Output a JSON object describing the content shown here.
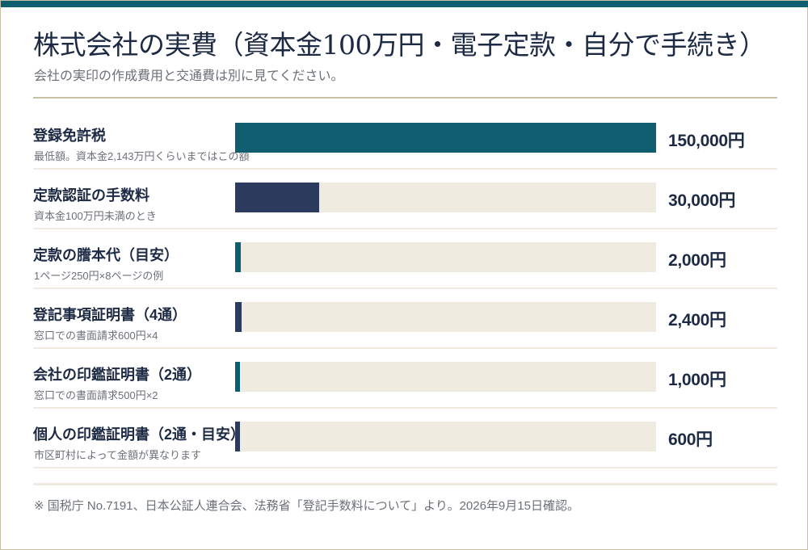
{
  "colors": {
    "accent_teal": "#0f5e6f",
    "accent_navy": "#2c3a5e",
    "track": "#f0ebe0",
    "text_dark": "#1d2a44",
    "text_muted": "#6b7078",
    "rule": "#c9c1a5"
  },
  "header": {
    "title": "株式会社の実費（資本金100万円・電子定款・自分で手続き）",
    "subtitle": "会社の実印の作成費用と交通費は別に見てください。"
  },
  "chart_data": {
    "type": "bar",
    "orientation": "horizontal",
    "title": "株式会社の実費（資本金100万円・電子定款・自分で手続き）",
    "subtitle": "会社の実印の作成費用と交通費は別に見てください。",
    "xlim": [
      0,
      150000
    ],
    "grid": false,
    "legend": "none",
    "bars": [
      {
        "label": "登録免許税",
        "note": "最低額。資本金2,143万円くらいまではこの額",
        "value": 150000,
        "display": "150,000円",
        "color": "#0f5e6f"
      },
      {
        "label": "定款認証の手数料",
        "note": "資本金100万円未満のとき",
        "value": 30000,
        "display": "30,000円",
        "color": "#2c3a5e"
      },
      {
        "label": "定款の謄本代（目安）",
        "note": "1ページ250円×8ページの例",
        "value": 2000,
        "display": "2,000円",
        "color": "#0f5e6f"
      },
      {
        "label": "登記事項証明書（4通）",
        "note": "窓口での書面請求600円×4",
        "value": 2400,
        "display": "2,400円",
        "color": "#2c3a5e"
      },
      {
        "label": "会社の印鑑証明書（2通）",
        "note": "窓口での書面請求500円×2",
        "value": 1000,
        "display": "1,000円",
        "color": "#0f5e6f"
      },
      {
        "label": "個人の印鑑証明書（2通・目安）",
        "note": "市区町村によって金額が異なります",
        "value": 600,
        "display": "600円",
        "color": "#2c3a5e"
      }
    ]
  },
  "footer": {
    "source": "※ 国税庁 No.7191、日本公証人連合会、法務省「登記手数料について」より。2026年9月15日確認。"
  }
}
